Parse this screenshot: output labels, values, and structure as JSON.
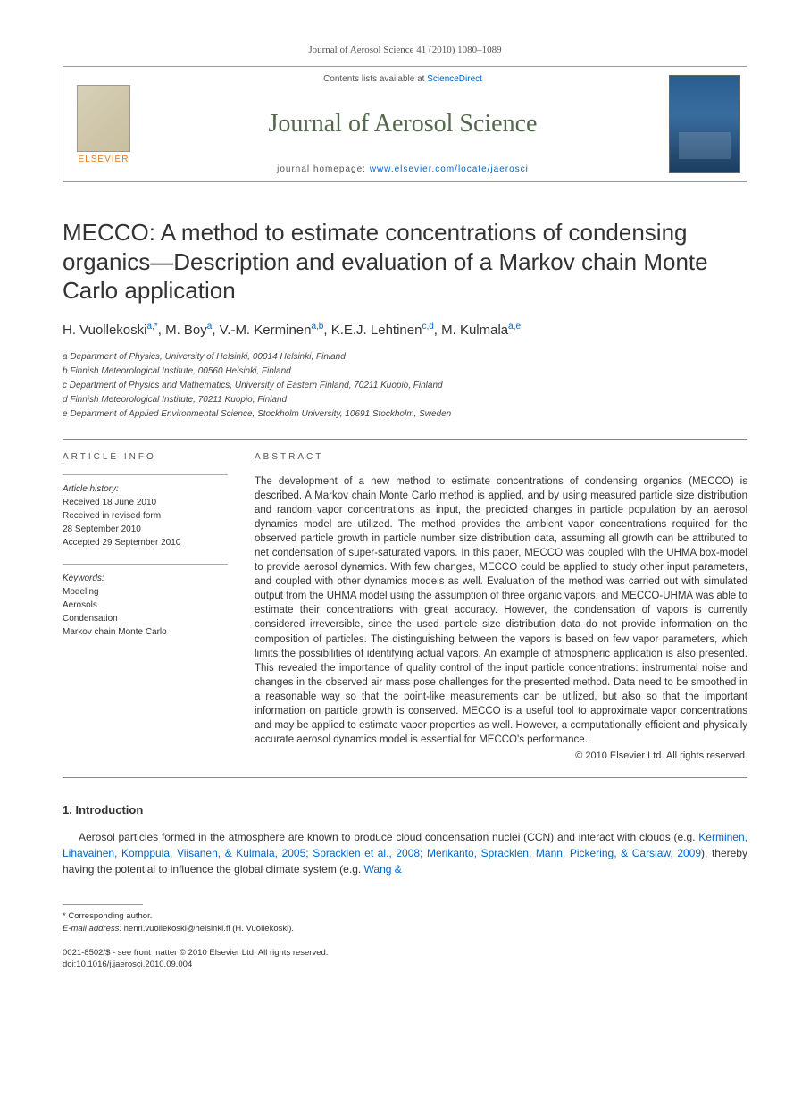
{
  "header": {
    "citation": "Journal of Aerosol Science 41 (2010) 1080–1089",
    "contents_prefix": "Contents lists available at ",
    "contents_link": "ScienceDirect",
    "journal_name": "Journal of Aerosol Science",
    "homepage_prefix": "journal homepage: ",
    "homepage_url": "www.elsevier.com/locate/jaerosci",
    "elsevier": "ELSEVIER"
  },
  "title": "MECCO: A method to estimate concentrations of condensing organics—Description and evaluation of a Markov chain Monte Carlo application",
  "authors": {
    "a1_name": "H. Vuollekoski",
    "a1_aff": "a,",
    "a1_star": "*",
    "a2_name": ", M. Boy",
    "a2_aff": "a",
    "a3_name": ", V.-M. Kerminen",
    "a3_aff": "a,b",
    "a4_name": ", K.E.J. Lehtinen",
    "a4_aff": "c,d",
    "a5_name": ", M. Kulmala",
    "a5_aff": "a,e"
  },
  "affiliations": {
    "a": "a Department of Physics, University of Helsinki, 00014 Helsinki, Finland",
    "b": "b Finnish Meteorological Institute, 00560 Helsinki, Finland",
    "c": "c Department of Physics and Mathematics, University of Eastern Finland, 70211 Kuopio, Finland",
    "d": "d Finnish Meteorological Institute, 70211 Kuopio, Finland",
    "e": "e Department of Applied Environmental Science, Stockholm University, 10691 Stockholm, Sweden"
  },
  "article_info": {
    "heading": "ARTICLE INFO",
    "history_label": "Article history:",
    "received": "Received 18 June 2010",
    "revised1": "Received in revised form",
    "revised2": "28 September 2010",
    "accepted": "Accepted 29 September 2010",
    "keywords_label": "Keywords:",
    "kw1": "Modeling",
    "kw2": "Aerosols",
    "kw3": "Condensation",
    "kw4": "Markov chain Monte Carlo"
  },
  "abstract": {
    "heading": "ABSTRACT",
    "text": "The development of a new method to estimate concentrations of condensing organics (MECCO) is described. A Markov chain Monte Carlo method is applied, and by using measured particle size distribution and random vapor concentrations as input, the predicted changes in particle population by an aerosol dynamics model are utilized. The method provides the ambient vapor concentrations required for the observed particle growth in particle number size distribution data, assuming all growth can be attributed to net condensation of super-saturated vapors. In this paper, MECCO was coupled with the UHMA box-model to provide aerosol dynamics. With few changes, MECCO could be applied to study other input parameters, and coupled with other dynamics models as well. Evaluation of the method was carried out with simulated output from the UHMA model using the assumption of three organic vapors, and MECCO-UHMA was able to estimate their concentrations with great accuracy. However, the condensation of vapors is currently considered irreversible, since the used particle size distribution data do not provide information on the composition of particles. The distinguishing between the vapors is based on few vapor parameters, which limits the possibilities of identifying actual vapors. An example of atmospheric application is also presented. This revealed the importance of quality control of the input particle concentrations: instrumental noise and changes in the observed air mass pose challenges for the presented method. Data need to be smoothed in a reasonable way so that the point-like measurements can be utilized, but also so that the important information on particle growth is conserved. MECCO is a useful tool to approximate vapor concentrations and may be applied to estimate vapor properties as well. However, a computationally efficient and physically accurate aerosol dynamics model is essential for MECCO's performance.",
    "copyright": "© 2010 Elsevier Ltd. All rights reserved."
  },
  "intro": {
    "heading": "1.  Introduction",
    "p1_a": "Aerosol particles formed in the atmosphere are known to produce cloud condensation nuclei (CCN) and interact with clouds (e.g. ",
    "p1_link1": "Kerminen, Lihavainen, Komppula, Viisanen, & Kulmala, 2005; Spracklen et al., 2008; Merikanto, Spracklen, Mann, Pickering, & Carslaw, 2009",
    "p1_b": "), thereby having the potential to influence the global climate system (e.g. ",
    "p1_link2": "Wang &"
  },
  "footnote": {
    "star": "* Corresponding author.",
    "email_label": "E-mail address:",
    "email": " henri.vuollekoski@helsinki.fi (H. Vuollekoski)."
  },
  "bottom": {
    "issn": "0021-8502/$ - see front matter © 2010 Elsevier Ltd. All rights reserved.",
    "doi": "doi:10.1016/j.jaerosci.2010.09.004"
  }
}
